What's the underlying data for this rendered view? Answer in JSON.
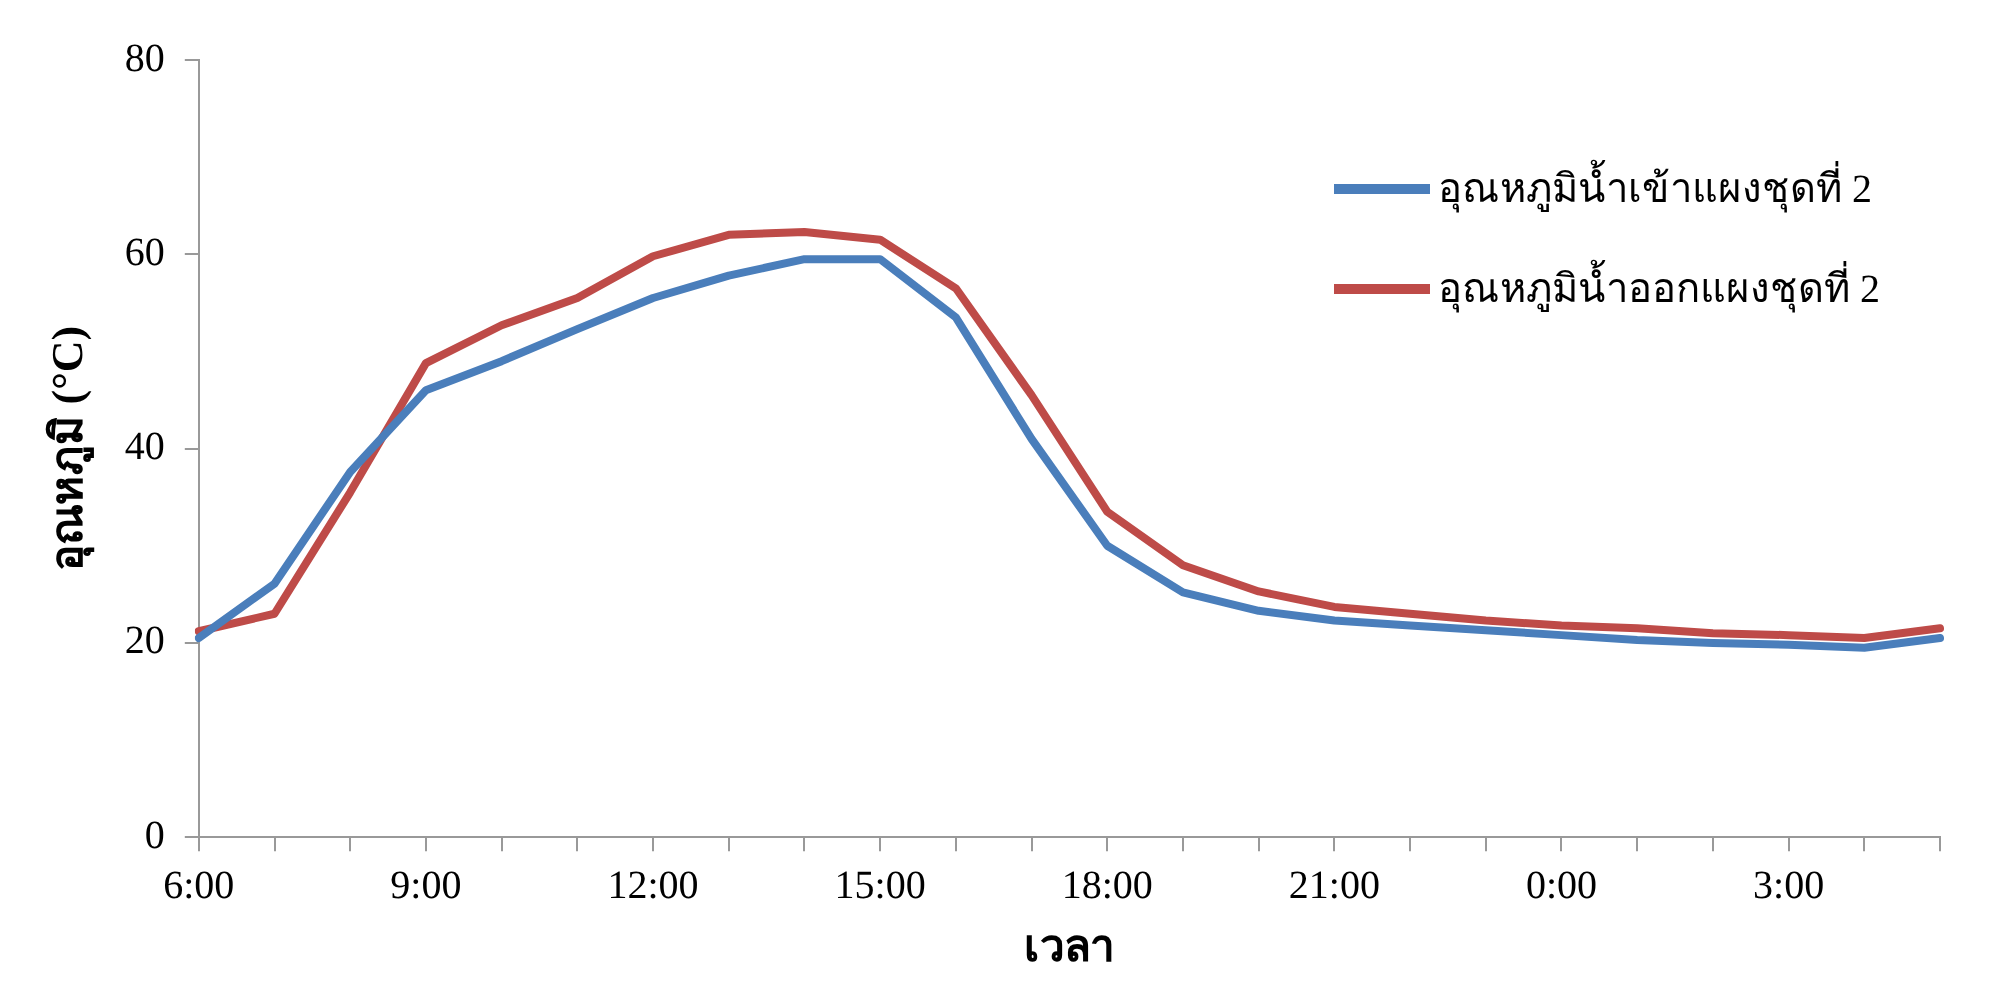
{
  "chart_data": {
    "type": "line",
    "xlabel": "เวลา",
    "ylabel": "อุณหภูมิ (°C)",
    "categories": [
      "6:00",
      null,
      null,
      "9:00",
      null,
      null,
      "12:00",
      null,
      null,
      "15:00",
      null,
      null,
      "18:00",
      null,
      null,
      "21:00",
      null,
      null,
      "0:00",
      null,
      null,
      "3:00",
      null,
      null
    ],
    "series": [
      {
        "name": "อุณหภูมิน้ำเข้าแผงชุดที่ 2",
        "color": "#4a7ebb",
        "values": [
          20.5,
          26.1,
          37.6,
          46,
          49,
          52.3,
          55.5,
          57.8,
          59.5,
          59.5,
          53.5,
          41,
          30,
          25.2,
          23.3,
          22.3,
          21.8,
          21.3,
          20.8,
          20.3,
          20,
          19.8,
          19.5,
          20.5
        ]
      },
      {
        "name": "อุณหภูมิน้ำออกแผงชุดที่ 2",
        "color": "#be4b48",
        "values": [
          21.2,
          23,
          35.5,
          48.8,
          52.7,
          55.5,
          59.8,
          62,
          62.3,
          61.5,
          56.5,
          45.5,
          33.5,
          28,
          25.3,
          23.7,
          23,
          22.3,
          21.8,
          21.5,
          21,
          20.8,
          20.5,
          21.5
        ]
      }
    ],
    "ylim": [
      0,
      80
    ],
    "yticks": [
      0,
      20,
      40,
      60,
      80
    ],
    "grid": false,
    "legend": "top right",
    "marker": "none",
    "line_style": "solid"
  }
}
